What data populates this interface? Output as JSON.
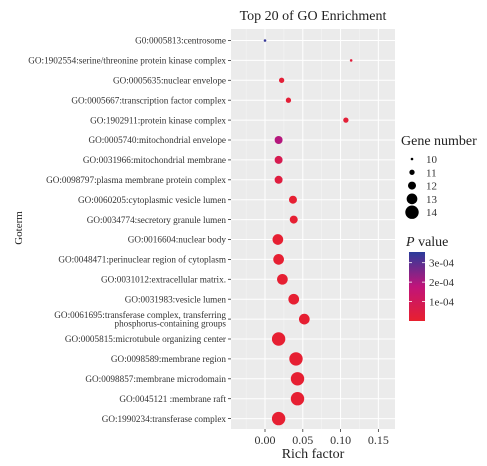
{
  "chart_data": {
    "type": "scatter",
    "title": "Top 20 of GO Enrichment",
    "xlabel": "Rich factor",
    "ylabel": "Goterm",
    "xlim": [
      -0.045,
      0.172
    ],
    "xticks": [
      0.0,
      0.05,
      0.1,
      0.15
    ],
    "xtick_labels": [
      "0.00",
      "0.05",
      "0.10",
      "0.15"
    ],
    "grid": true,
    "terms": [
      "G0:0005813:centrosome",
      "GO:1902554:serine/threonine protein kinase complex",
      "GO:0005635:nuclear envelope",
      "GO:0005667:transcription factor complex",
      "GO:1902911:protein kinase complex",
      "GO:0005740:mitochondrial envelope",
      "GO:0031966:mitochondrial membrane",
      "GO:0098797:plasma membrane protein complex",
      "GO:0060205:cytoplasmic vesicle lumen",
      "GO:0034774:secretory granule lumen",
      "GO:0016604:nuclear body",
      "GO:0048471:perinuclear region of cytoplasm",
      "GO:0031012:extracellular matrix.",
      "GO:0031983:vesicle lumen",
      "GO:0061695:transferase complex, transferring\nphosphorus-containing groups",
      "GO:0005815:microtubule organizing center",
      "GO:0098589:membrane region",
      "GO:0098857:membrane microdomain",
      "GO:0045121 :membrane raft",
      "GO:1990234:transferase complex"
    ],
    "points": [
      {
        "rich_factor": 0.0,
        "gene_number": 10,
        "p_value": 0.00034
      },
      {
        "rich_factor": 0.114,
        "gene_number": 10,
        "p_value": 3e-05
      },
      {
        "rich_factor": 0.022,
        "gene_number": 11,
        "p_value": 2e-05
      },
      {
        "rich_factor": 0.031,
        "gene_number": 11,
        "p_value": 2e-05
      },
      {
        "rich_factor": 0.107,
        "gene_number": 11,
        "p_value": 2e-05
      },
      {
        "rich_factor": 0.018,
        "gene_number": 12,
        "p_value": 0.00019
      },
      {
        "rich_factor": 0.018,
        "gene_number": 12,
        "p_value": 8e-05
      },
      {
        "rich_factor": 0.018,
        "gene_number": 12,
        "p_value": 4e-05
      },
      {
        "rich_factor": 0.037,
        "gene_number": 12,
        "p_value": 1e-05
      },
      {
        "rich_factor": 0.038,
        "gene_number": 12,
        "p_value": 1e-05
      },
      {
        "rich_factor": 0.017,
        "gene_number": 13,
        "p_value": 1e-05
      },
      {
        "rich_factor": 0.018,
        "gene_number": 13,
        "p_value": 1e-05
      },
      {
        "rich_factor": 0.023,
        "gene_number": 13,
        "p_value": 1e-05
      },
      {
        "rich_factor": 0.038,
        "gene_number": 13,
        "p_value": 1e-05
      },
      {
        "rich_factor": 0.052,
        "gene_number": 13,
        "p_value": 1e-05
      },
      {
        "rich_factor": 0.018,
        "gene_number": 14,
        "p_value": 1e-05
      },
      {
        "rich_factor": 0.041,
        "gene_number": 14,
        "p_value": 1e-05
      },
      {
        "rich_factor": 0.043,
        "gene_number": 14,
        "p_value": 1e-05
      },
      {
        "rich_factor": 0.043,
        "gene_number": 14,
        "p_value": 1e-05
      },
      {
        "rich_factor": 0.018,
        "gene_number": 14,
        "p_value": 1e-05
      }
    ],
    "size_legend": {
      "title": "Gene number",
      "values": [
        10,
        11,
        12,
        13,
        14
      ],
      "labels": [
        "10",
        "11",
        "12",
        "13",
        "14"
      ]
    },
    "color_legend": {
      "title_italic": "P",
      "title_rest": " value",
      "ticks": [
        0.0003,
        0.0002,
        0.0001
      ],
      "labels": [
        "3e-04",
        "2e-04",
        "1e-04"
      ],
      "low_color": "#e8202e",
      "mid_color": "#c0147a",
      "high_color": "#2a3c9b",
      "range": [
        0.0,
        0.000355
      ]
    },
    "colors": {
      "panel_background": "#ebebeb",
      "grid_major": "#ffffff",
      "grid_minor": "#f5f5f5",
      "text": "#333333"
    }
  }
}
